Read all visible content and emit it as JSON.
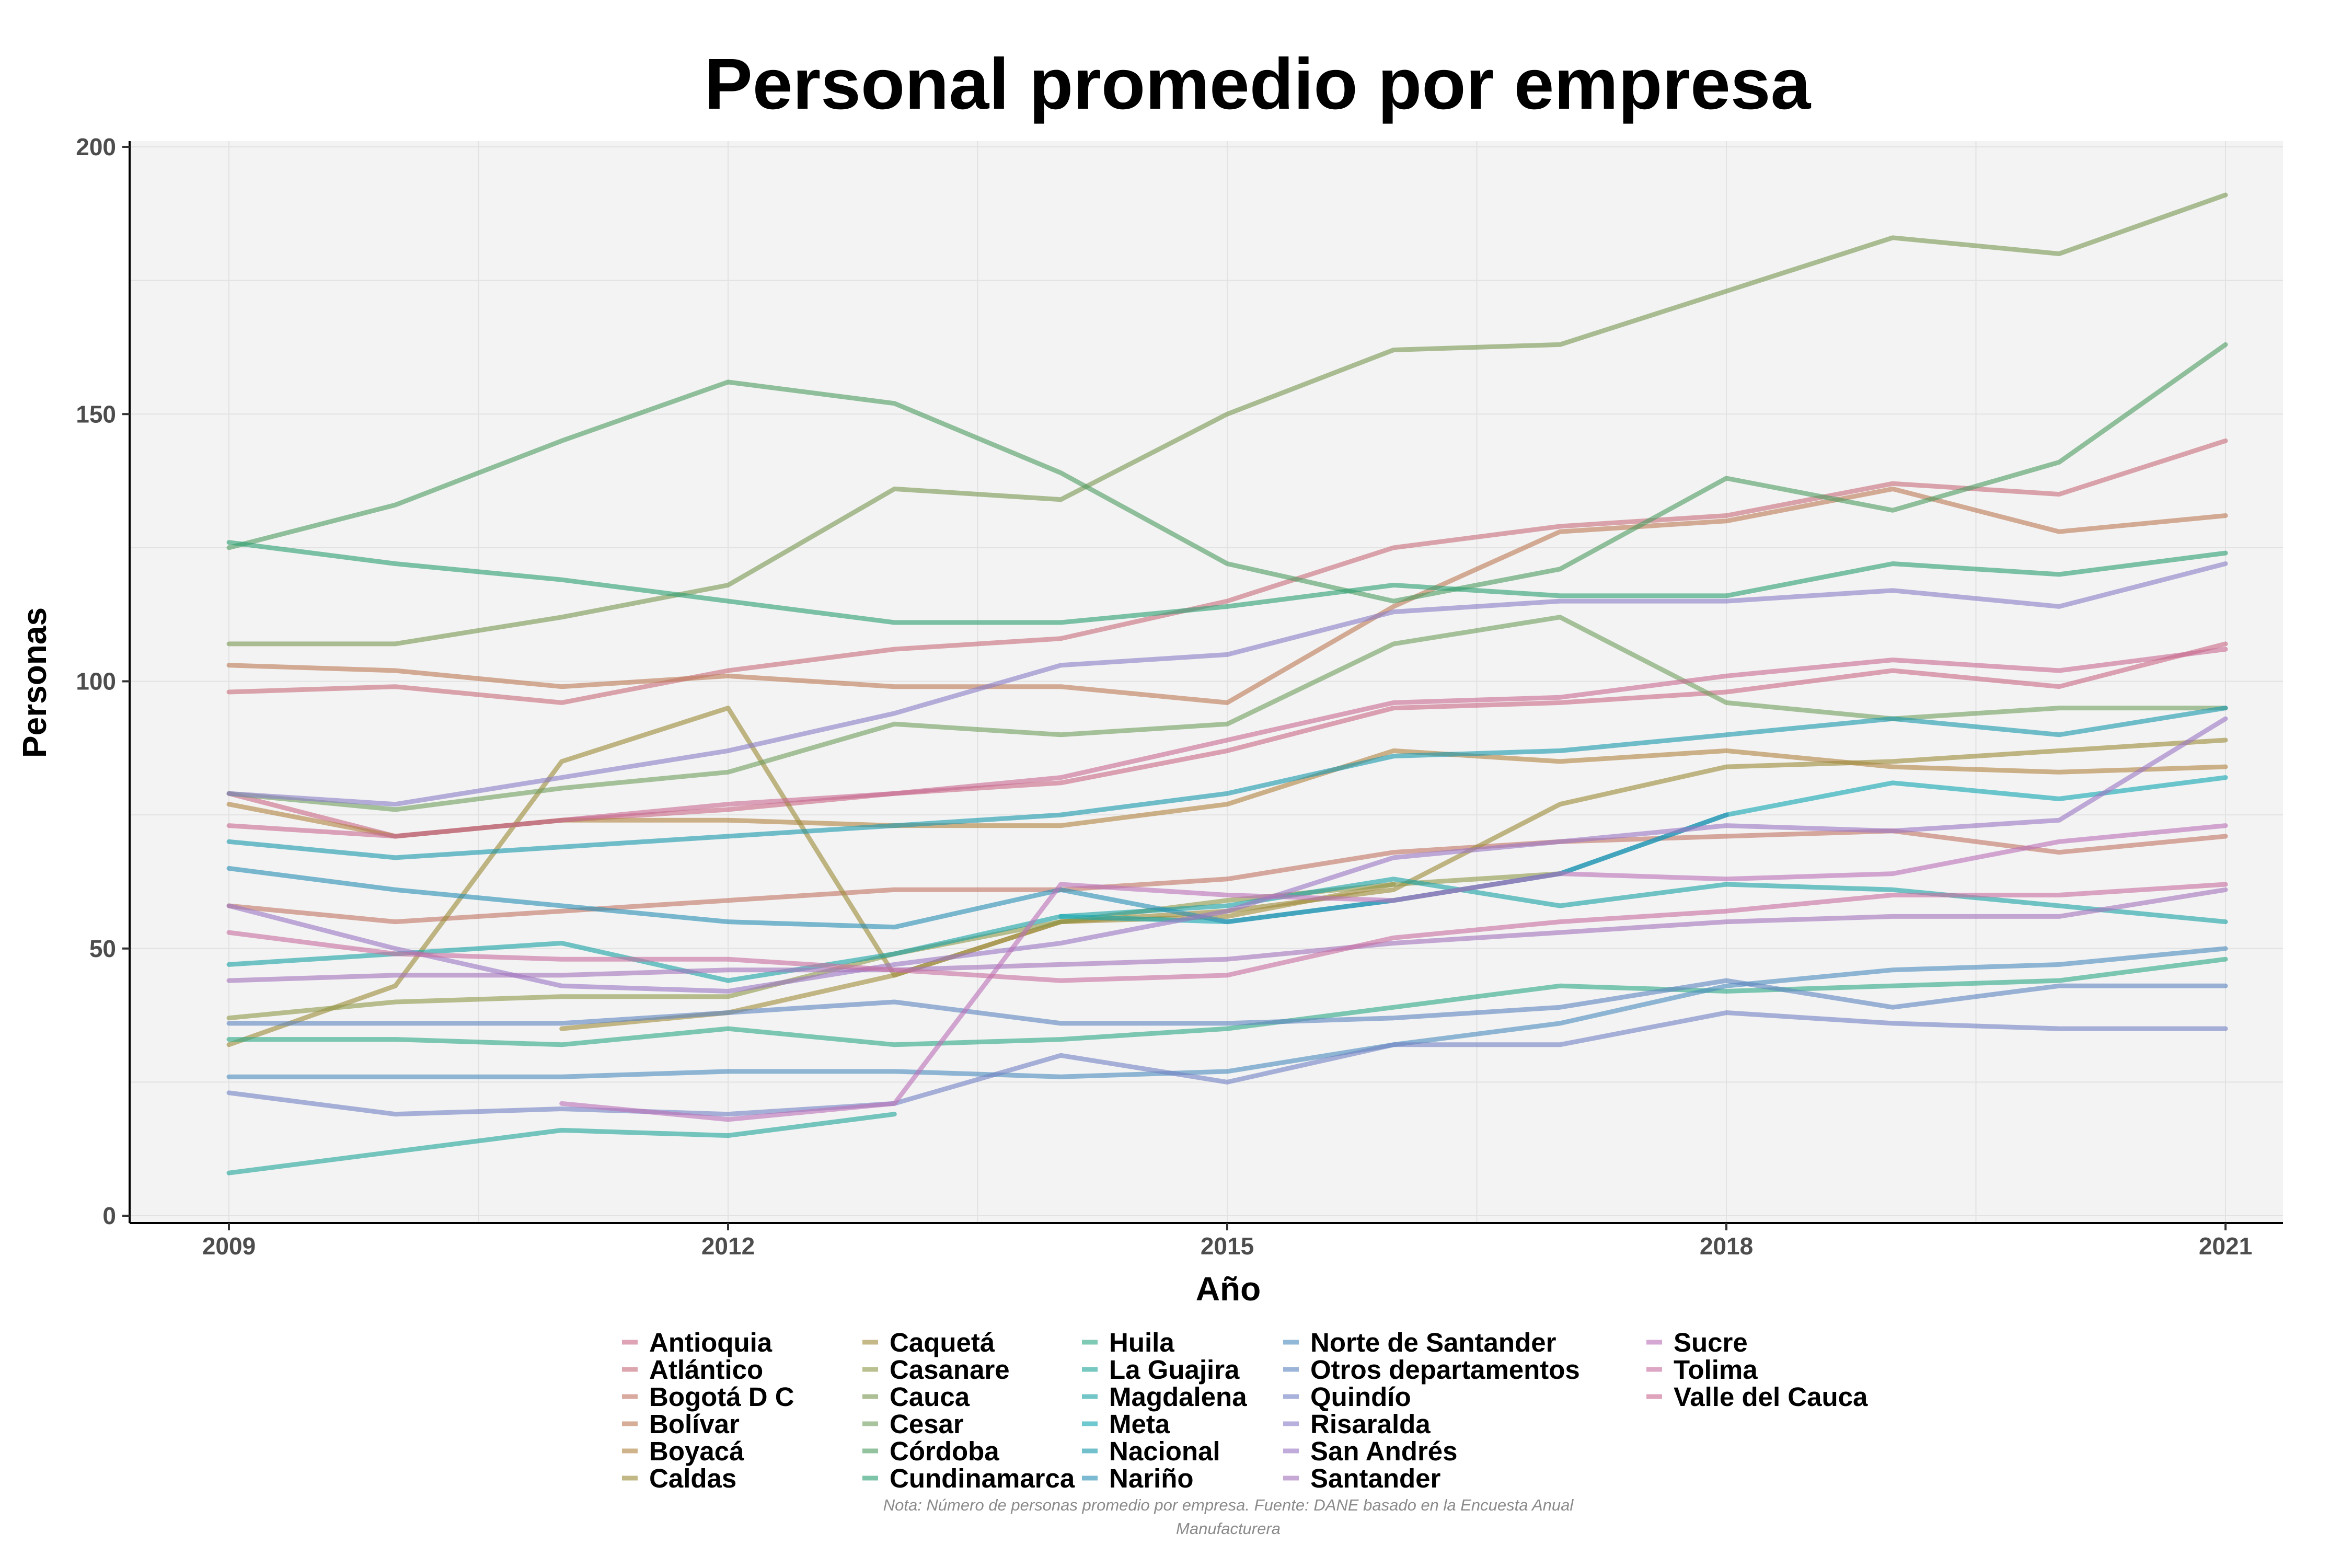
{
  "chart_data": {
    "type": "line",
    "title": "Personal promedio por empresa",
    "xlabel": "Año",
    "ylabel": "Personas",
    "x": [
      2009,
      2010,
      2011,
      2012,
      2013,
      2014,
      2015,
      2016,
      2017,
      2018,
      2019,
      2020,
      2021
    ],
    "xticks": [
      "2009",
      "2012",
      "2015",
      "2018",
      "2021"
    ],
    "yticks": [
      "0",
      "50",
      "100",
      "150",
      "200"
    ],
    "xlim": [
      2009,
      2021
    ],
    "ylim": [
      0,
      200
    ],
    "legend_position": "bottom",
    "note_lines": [
      "Nota: Número de personas promedio por empresa. Fuente: DANE basado en la Encuesta Anual",
      "Manufacturera"
    ],
    "series": [
      {
        "name": "Antioquia",
        "color": "#c96a86",
        "values": [
          79,
          71,
          74,
          76,
          79,
          81,
          87,
          95,
          96,
          98,
          102,
          99,
          107
        ]
      },
      {
        "name": "Atlántico",
        "color": "#c86f7c",
        "values": [
          98,
          99,
          96,
          102,
          106,
          108,
          115,
          125,
          129,
          131,
          137,
          135,
          145
        ]
      },
      {
        "name": "Bogotá D C",
        "color": "#c27665",
        "values": [
          58,
          55,
          57,
          59,
          61,
          61,
          63,
          68,
          70,
          71,
          72,
          68,
          71
        ]
      },
      {
        "name": "Bolívar",
        "color": "#bd7a57",
        "values": [
          103,
          102,
          99,
          101,
          99,
          99,
          96,
          114,
          128,
          130,
          136,
          128,
          131
        ]
      },
      {
        "name": "Boyacá",
        "color": "#b28444",
        "values": [
          77,
          71,
          74,
          74,
          73,
          73,
          77,
          87,
          85,
          87,
          84,
          83,
          84
        ]
      },
      {
        "name": "Caldas",
        "color": "#9d8d3c",
        "values": [
          32,
          43,
          85,
          95,
          45,
          55,
          57,
          61,
          77,
          84,
          85,
          87,
          89
        ]
      },
      {
        "name": "Caquetá",
        "color": "#a18e3e",
        "values": [
          null,
          null,
          35,
          38,
          45,
          55,
          56,
          62,
          null,
          null,
          null,
          null,
          null
        ]
      },
      {
        "name": "Casanare",
        "color": "#8f9a4a",
        "values": [
          37,
          40,
          41,
          41,
          49,
          55,
          59,
          62,
          64,
          null,
          null,
          null,
          null
        ]
      },
      {
        "name": "Cauca",
        "color": "#7a9a54",
        "values": [
          107,
          107,
          112,
          118,
          136,
          134,
          150,
          162,
          163,
          173,
          183,
          180,
          191
        ]
      },
      {
        "name": "Cesar",
        "color": "#73a05f",
        "values": [
          79,
          76,
          80,
          83,
          92,
          90,
          92,
          107,
          112,
          96,
          93,
          95,
          95
        ]
      },
      {
        "name": "Córdoba",
        "color": "#4f9c62",
        "values": [
          125,
          133,
          145,
          156,
          152,
          139,
          122,
          115,
          121,
          138,
          132,
          141,
          163
        ]
      },
      {
        "name": "Cundinamarca",
        "color": "#2e9f72",
        "values": [
          126,
          122,
          119,
          115,
          111,
          111,
          114,
          118,
          116,
          116,
          122,
          120,
          124
        ]
      },
      {
        "name": "Huila",
        "color": "#31a988",
        "values": [
          33,
          33,
          32,
          35,
          32,
          33,
          35,
          39,
          43,
          42,
          43,
          44,
          48
        ]
      },
      {
        "name": "La Guajira",
        "color": "#22a79a",
        "values": [
          8,
          12,
          16,
          15,
          19,
          null,
          null,
          null,
          null,
          null,
          null,
          null,
          null
        ]
      },
      {
        "name": "Magdalena",
        "color": "#1da3a5",
        "values": [
          47,
          49,
          51,
          44,
          49,
          56,
          58,
          63,
          58,
          62,
          61,
          58,
          55
        ]
      },
      {
        "name": "Meta",
        "color": "#14a8b2",
        "values": [
          null,
          null,
          null,
          null,
          null,
          56,
          55,
          59,
          64,
          75,
          81,
          78,
          82
        ]
      },
      {
        "name": "Nacional",
        "color": "#1d99ae",
        "values": [
          70,
          67,
          69,
          71,
          73,
          75,
          79,
          86,
          87,
          90,
          93,
          90,
          95
        ]
      },
      {
        "name": "Nariño",
        "color": "#2a8fb5",
        "values": [
          65,
          61,
          58,
          55,
          54,
          61,
          55,
          59,
          64,
          75,
          null,
          null,
          null
        ]
      },
      {
        "name": "Norte de Santander",
        "color": "#4e8ebe",
        "values": [
          26,
          26,
          26,
          27,
          27,
          26,
          27,
          32,
          36,
          43,
          46,
          47,
          50
        ]
      },
      {
        "name": "Otros departamentos",
        "color": "#5f86c0",
        "values": [
          36,
          36,
          36,
          38,
          40,
          36,
          36,
          37,
          39,
          44,
          39,
          43,
          43
        ]
      },
      {
        "name": "Quindío",
        "color": "#7583c3",
        "values": [
          23,
          19,
          20,
          19,
          21,
          30,
          25,
          32,
          32,
          38,
          36,
          35,
          35
        ]
      },
      {
        "name": "Risaralda",
        "color": "#8c7fc6",
        "values": [
          79,
          77,
          82,
          87,
          94,
          103,
          105,
          113,
          115,
          115,
          117,
          114,
          122
        ]
      },
      {
        "name": "San Andrés",
        "color": "#9b78c3",
        "values": [
          58,
          50,
          43,
          42,
          47,
          51,
          57,
          67,
          70,
          73,
          72,
          74,
          93
        ]
      },
      {
        "name": "Santander",
        "color": "#a474bd",
        "values": [
          44,
          45,
          45,
          46,
          46,
          47,
          48,
          51,
          53,
          55,
          56,
          56,
          61
        ]
      },
      {
        "name": "Sucre",
        "color": "#bc72b9",
        "values": [
          null,
          null,
          21,
          18,
          21,
          62,
          60,
          59,
          64,
          63,
          64,
          70,
          73
        ]
      },
      {
        "name": "Tolima",
        "color": "#c66fa0",
        "values": [
          53,
          49,
          48,
          48,
          46,
          44,
          45,
          52,
          55,
          57,
          60,
          60,
          62
        ]
      },
      {
        "name": "Valle del Cauca",
        "color": "#c86c93",
        "values": [
          73,
          71,
          74,
          77,
          79,
          82,
          89,
          96,
          97,
          101,
          104,
          102,
          106
        ]
      }
    ]
  }
}
